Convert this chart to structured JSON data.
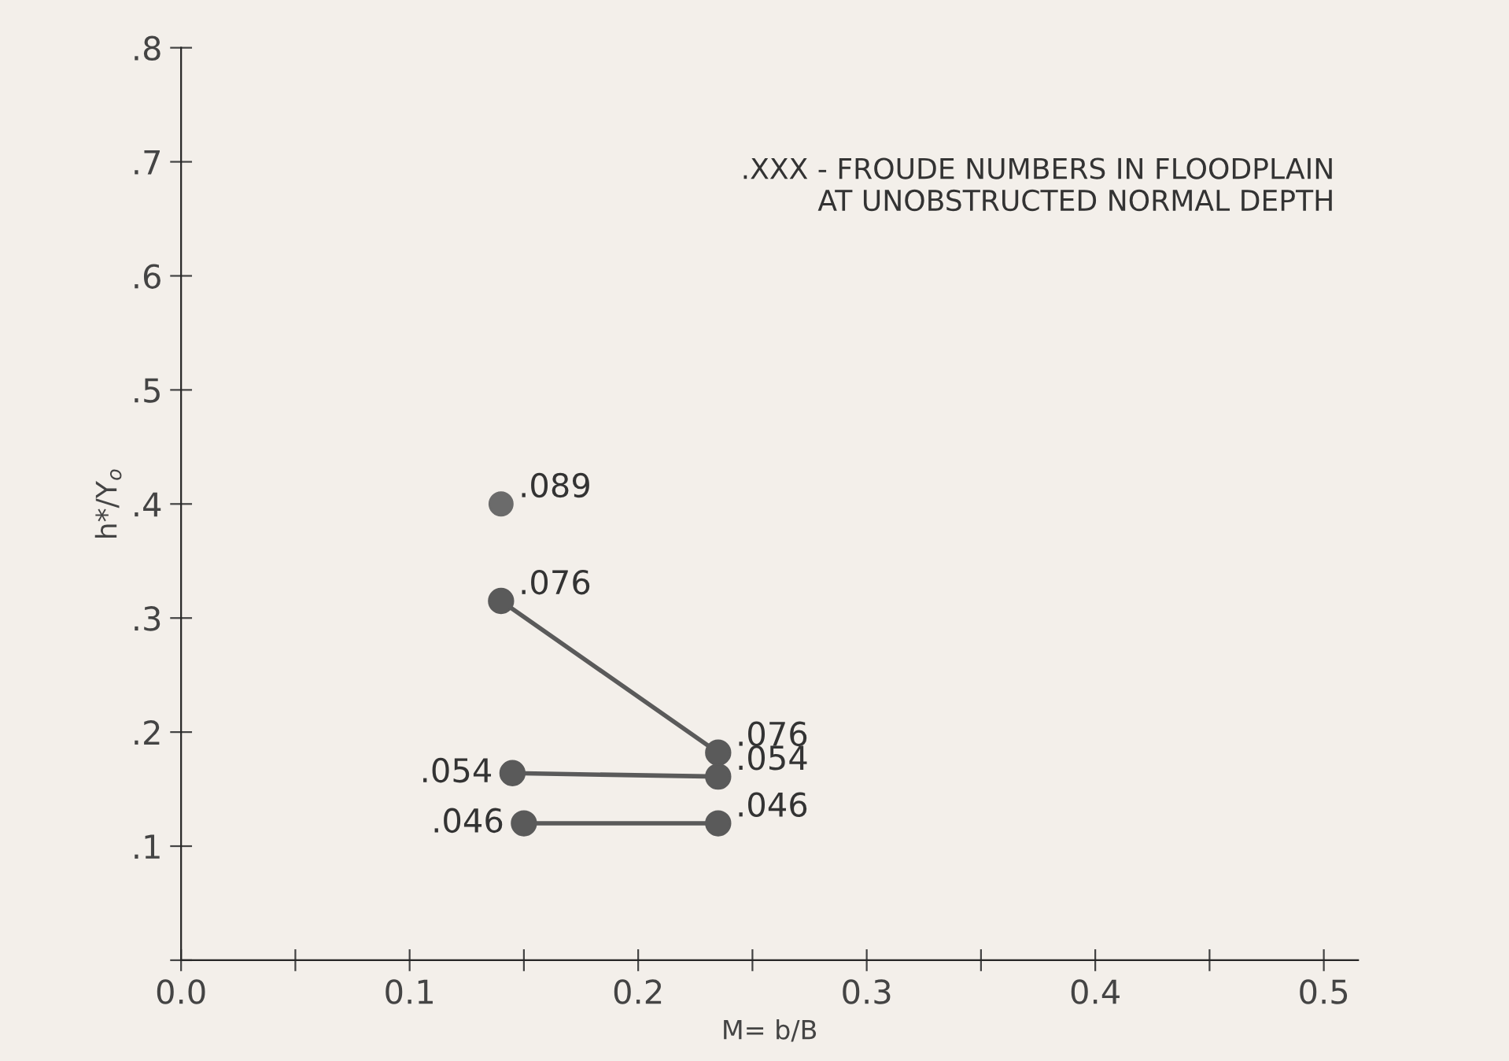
{
  "chart_data": {
    "type": "line",
    "xlabel": "M= b/B",
    "ylabel": "h*/Y$_{o}$",
    "annotations": [
      ".XXX - FROUDE NUMBERS IN FLOODPLAIN\n      AT UNOBSTRUCTED NORMAL DEPTH",
      {
        "text": ".089",
        "x": 0.14,
        "y": 0.4
      },
      {
        "text": ".076",
        "x": 0.14,
        "y": 0.315
      },
      {
        "text": ".076",
        "x": 0.235,
        "y": 0.182
      },
      {
        "text": ".054",
        "x": 0.145,
        "y": 0.164
      },
      {
        "text": ".054",
        "x": 0.235,
        "y": 0.161
      },
      {
        "text": ".046",
        "x": 0.15,
        "y": 0.12
      },
      {
        "text": ".046",
        "x": 0.235,
        "y": 0.12
      }
    ],
    "series": [
      {
        "type": "scatter",
        "color": "#6b6b6b",
        "x": [
          0.14
        ],
        "values": [
          0.4
        ]
      },
      {
        "color": "#5a5a5a",
        "x": [
          0.14,
          0.235
        ],
        "values": [
          0.315,
          0.182
        ]
      },
      {
        "color": "#5a5a5a",
        "x": [
          0.145,
          0.235
        ],
        "values": [
          0.164,
          0.161
        ]
      },
      {
        "color": "#5a5a5a",
        "x": [
          0.15,
          0.235
        ],
        "values": [
          0.12,
          0.12
        ]
      }
    ],
    "marker": "circle",
    "xlim": [
      0,
      0.515
    ],
    "ylim": [
      0,
      0.8
    ],
    "xticks": [
      {
        "value": 0,
        "label": "0.0"
      },
      {
        "value": 0.05,
        "label": null
      },
      {
        "value": 0.1,
        "label": "0.1"
      },
      {
        "value": 0.15,
        "label": null
      },
      {
        "value": 0.2,
        "label": "0.2"
      },
      {
        "value": 0.25,
        "label": null
      },
      {
        "value": 0.3,
        "label": "0.3"
      },
      {
        "value": 0.35,
        "label": null
      },
      {
        "value": 0.4,
        "label": "0.4"
      },
      {
        "value": 0.45,
        "label": null
      },
      {
        "value": 0.5,
        "label": "0.5"
      }
    ],
    "yticks": [
      {
        "value": 0,
        "label": null
      },
      {
        "value": 0.1,
        "label": ".1"
      },
      {
        "value": 0.2,
        "label": ".2"
      },
      {
        "value": 0.3,
        "label": ".3"
      },
      {
        "value": 0.4,
        "label": ".4"
      },
      {
        "value": 0.5,
        "label": ".5"
      },
      {
        "value": 0.6,
        "label": ".6"
      },
      {
        "value": 0.7,
        "label": ".7"
      },
      {
        "value": 0.8,
        "label": ".8"
      }
    ],
    "grid": false,
    "legend": false
  }
}
